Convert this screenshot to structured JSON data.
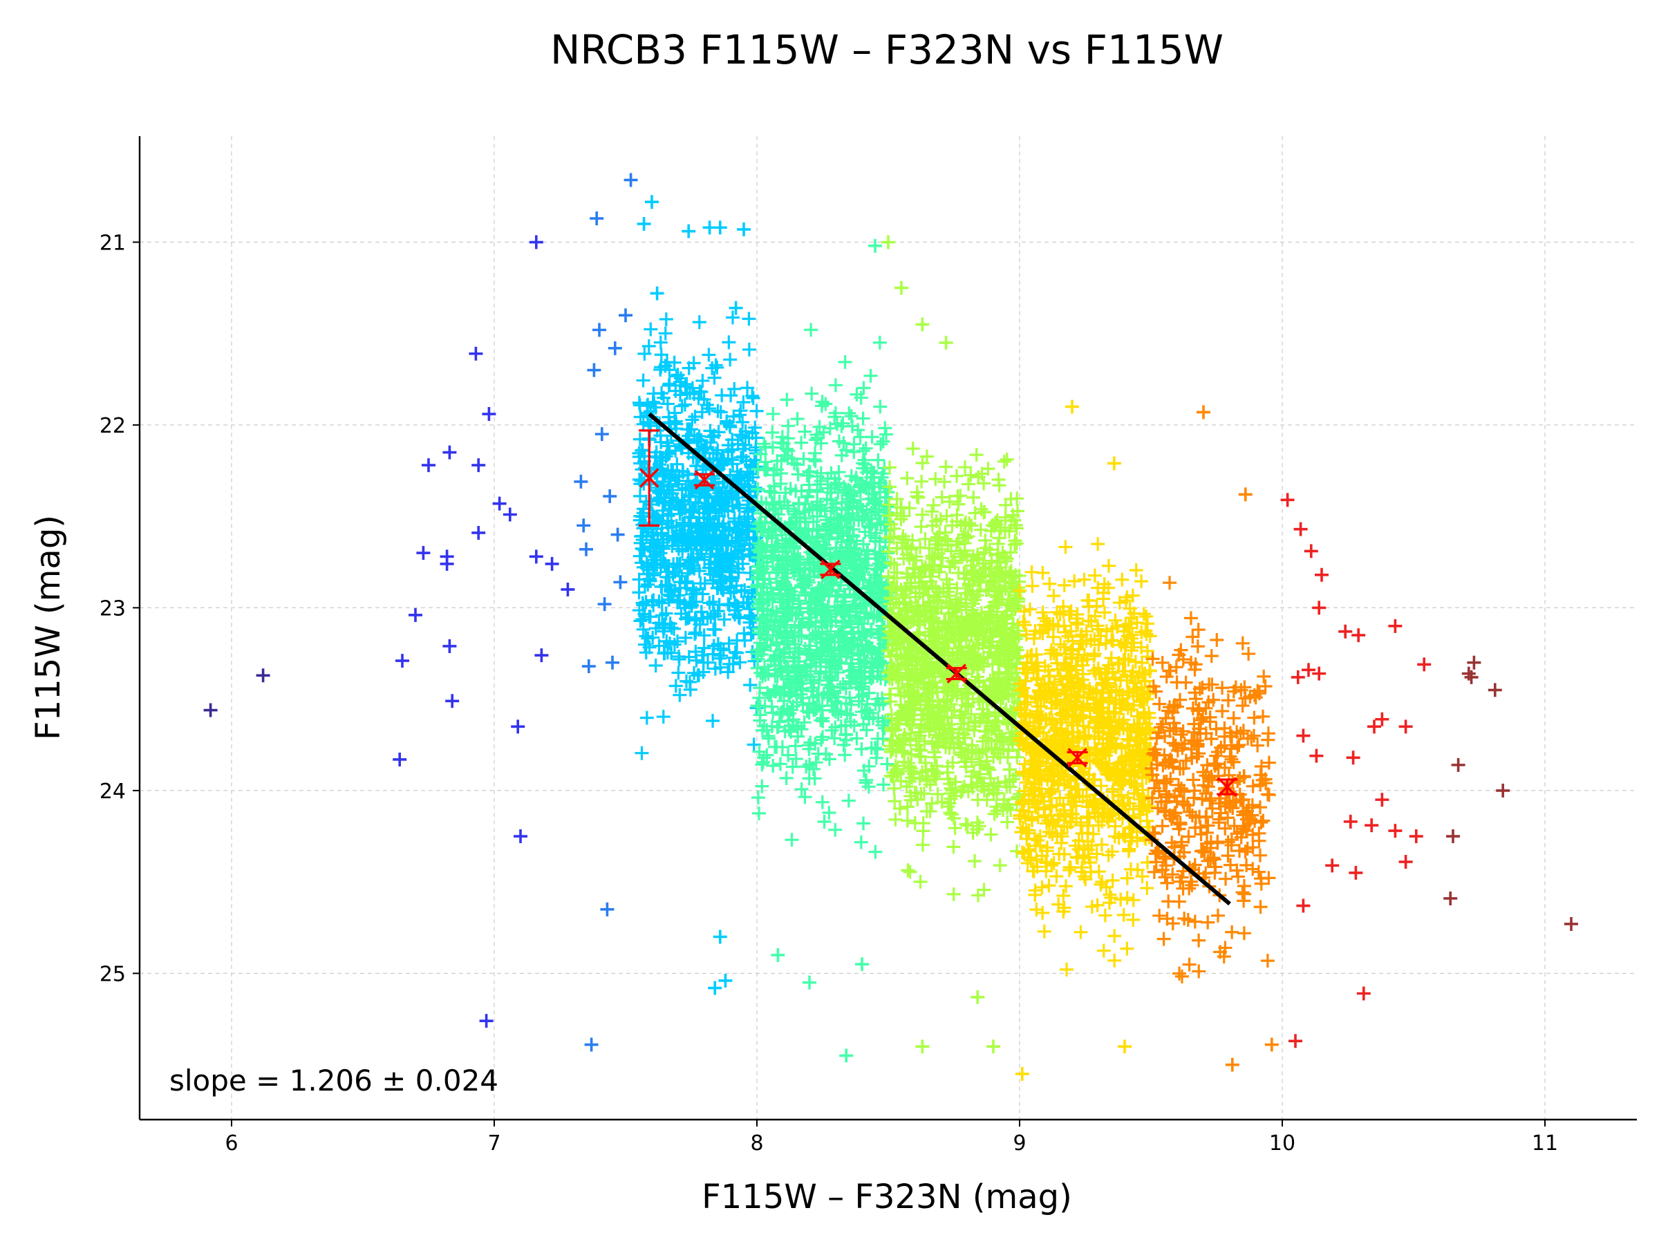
{
  "chart_data": {
    "type": "scatter",
    "title": "NRCB3 F115W – F323N vs F115W",
    "xlabel": "F115W – F323N (mag)",
    "ylabel": "F115W (mag)",
    "xlim": [
      5.65,
      11.35
    ],
    "ylim": [
      25.8,
      20.42
    ],
    "y_inverted": true,
    "grid": true,
    "xticks": [
      6,
      7,
      8,
      9,
      10,
      11
    ],
    "yticks": [
      21,
      22,
      23,
      24,
      25
    ],
    "annotation": "slope = 1.206 ± 0.024",
    "colormap": "jet",
    "bin_edges": [
      8.0,
      8.5,
      9.0,
      9.5
    ],
    "colors": {
      "dark_blue": "#3b2a95",
      "blue": "#3333ee",
      "azure": "#2a7df0",
      "cyan": "#00ccff",
      "teal": "#44ffaa",
      "green": "#aaff44",
      "yellow": "#ffdd00",
      "orange": "#ff8800",
      "red": "#ee2222",
      "dark_red": "#993333",
      "fit_line": "#000000",
      "binned_points": "#ff0000"
    },
    "series": [
      {
        "marker": "+",
        "group": "sparse_stars",
        "points": [
          [
            5.92,
            23.56
          ],
          [
            6.12,
            23.37
          ],
          [
            6.64,
            23.83
          ],
          [
            6.65,
            23.29
          ],
          [
            6.7,
            23.04
          ],
          [
            6.73,
            22.7
          ],
          [
            6.75,
            22.22
          ],
          [
            6.82,
            22.72
          ],
          [
            6.82,
            22.76
          ],
          [
            6.83,
            23.21
          ],
          [
            6.83,
            22.15
          ],
          [
            6.84,
            23.51
          ],
          [
            6.93,
            21.61
          ],
          [
            6.94,
            22.59
          ],
          [
            6.94,
            22.22
          ],
          [
            6.98,
            21.94
          ],
          [
            6.97,
            25.26
          ],
          [
            7.02,
            22.43
          ],
          [
            7.06,
            22.49
          ],
          [
            7.09,
            23.65
          ],
          [
            7.1,
            24.25
          ],
          [
            7.16,
            21.0
          ],
          [
            7.16,
            22.72
          ],
          [
            7.18,
            23.26
          ],
          [
            7.22,
            22.76
          ],
          [
            7.28,
            22.9
          ],
          [
            7.33,
            22.31
          ],
          [
            7.34,
            22.55
          ],
          [
            7.35,
            22.68
          ],
          [
            7.36,
            23.32
          ],
          [
            7.37,
            25.39
          ],
          [
            7.38,
            21.7
          ],
          [
            7.39,
            20.87
          ],
          [
            7.4,
            21.48
          ],
          [
            7.41,
            22.05
          ],
          [
            7.42,
            22.98
          ],
          [
            7.43,
            24.65
          ],
          [
            7.44,
            22.39
          ],
          [
            7.45,
            23.3
          ],
          [
            7.46,
            21.58
          ],
          [
            7.47,
            22.6
          ],
          [
            7.48,
            22.86
          ],
          [
            7.5,
            21.4
          ],
          [
            7.52,
            20.66
          ],
          [
            7.57,
            20.9
          ],
          [
            7.6,
            20.78
          ],
          [
            7.62,
            21.28
          ],
          [
            7.74,
            20.94
          ],
          [
            7.82,
            20.92
          ],
          [
            7.86,
            20.92
          ],
          [
            7.95,
            20.93
          ],
          [
            7.92,
            21.36
          ],
          [
            7.86,
            24.8
          ],
          [
            7.88,
            25.04
          ],
          [
            7.84,
            25.08
          ],
          [
            8.45,
            21.02
          ],
          [
            8.5,
            21.0
          ],
          [
            8.55,
            21.25
          ],
          [
            8.63,
            21.45
          ],
          [
            8.72,
            21.55
          ],
          [
            9.2,
            21.9
          ],
          [
            9.36,
            22.21
          ],
          [
            9.7,
            21.93
          ],
          [
            9.86,
            22.38
          ],
          [
            10.02,
            22.41
          ],
          [
            10.07,
            22.57
          ],
          [
            10.11,
            22.69
          ],
          [
            10.15,
            22.82
          ],
          [
            10.14,
            23.0
          ],
          [
            10.1,
            23.34
          ],
          [
            10.14,
            23.36
          ],
          [
            10.06,
            23.38
          ],
          [
            10.24,
            23.13
          ],
          [
            10.29,
            23.15
          ],
          [
            10.43,
            23.1
          ],
          [
            10.54,
            23.31
          ],
          [
            10.35,
            23.65
          ],
          [
            10.38,
            23.61
          ],
          [
            10.47,
            23.65
          ],
          [
            10.13,
            23.81
          ],
          [
            10.27,
            23.82
          ],
          [
            10.08,
            23.7
          ],
          [
            10.26,
            24.17
          ],
          [
            10.34,
            24.19
          ],
          [
            10.38,
            24.05
          ],
          [
            10.43,
            24.22
          ],
          [
            10.51,
            24.25
          ],
          [
            10.47,
            24.39
          ],
          [
            10.28,
            24.45
          ],
          [
            10.19,
            24.41
          ],
          [
            10.08,
            24.63
          ],
          [
            10.31,
            25.11
          ],
          [
            10.05,
            25.37
          ],
          [
            9.96,
            25.39
          ],
          [
            10.67,
            23.86
          ],
          [
            10.65,
            24.25
          ],
          [
            10.64,
            24.59
          ],
          [
            10.71,
            23.36
          ],
          [
            10.73,
            23.3
          ],
          [
            10.72,
            23.38
          ],
          [
            10.81,
            23.45
          ],
          [
            10.84,
            24.0
          ],
          [
            11.1,
            24.73
          ],
          [
            9.81,
            25.5
          ],
          [
            9.4,
            25.4
          ],
          [
            9.01,
            25.55
          ],
          [
            8.9,
            25.4
          ],
          [
            8.63,
            25.4
          ],
          [
            8.84,
            25.13
          ],
          [
            8.34,
            25.45
          ],
          [
            8.4,
            24.95
          ],
          [
            8.2,
            25.05
          ],
          [
            8.08,
            24.9
          ]
        ]
      }
    ],
    "binned_means": {
      "marker": "x",
      "x": [
        7.59,
        7.8,
        8.28,
        8.76,
        9.22,
        9.79
      ],
      "y": [
        22.29,
        22.3,
        22.79,
        23.36,
        23.82,
        23.98
      ],
      "y_err": [
        0.26,
        0.03,
        0.03,
        0.03,
        0.03,
        0.04
      ]
    },
    "fit_line": {
      "x": [
        7.59,
        9.8
      ],
      "y": [
        21.94,
        24.62
      ]
    }
  }
}
